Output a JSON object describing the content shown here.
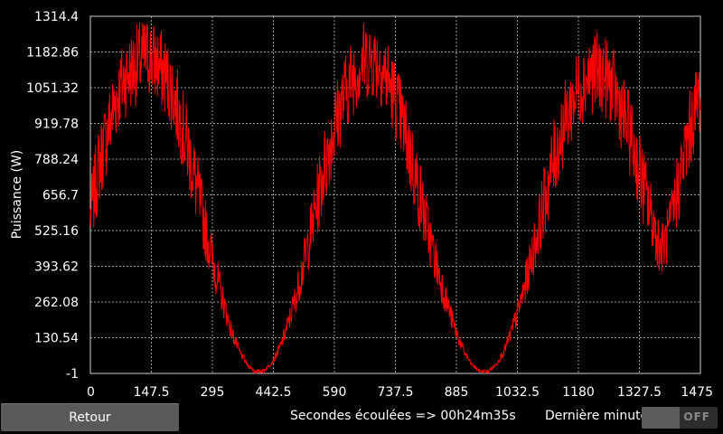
{
  "chart_data": {
    "type": "line",
    "title": "",
    "xlabel": "",
    "ylabel": "Puissance (W)",
    "xlim": [
      0,
      1475
    ],
    "ylim": [
      -1,
      1314.4
    ],
    "x_ticks": [
      "0",
      "147.5",
      "295",
      "442.5",
      "590",
      "737.5",
      "885",
      "1032.5",
      "1180",
      "1327.5",
      "1475"
    ],
    "y_ticks": [
      "-1",
      "130.54",
      "262.08",
      "393.62",
      "525.16",
      "656.7",
      "788.24",
      "919.78",
      "1051.32",
      "1182.86",
      "1314.4"
    ],
    "grid": true,
    "series": [
      {
        "color": "#ff0000",
        "x": [
          0,
          20,
          40,
          60,
          80,
          100,
          120,
          140,
          160,
          180,
          200,
          220,
          240,
          260,
          280,
          300,
          320,
          340,
          360,
          380,
          400,
          420,
          440,
          460,
          480,
          500,
          520,
          540,
          560,
          580,
          600,
          620,
          640,
          660,
          680,
          700,
          720,
          740,
          760,
          780,
          800,
          820,
          840,
          860,
          880,
          900,
          920,
          940,
          960,
          980,
          1000,
          1020,
          1040,
          1060,
          1080,
          1100,
          1120,
          1140,
          1160,
          1180,
          1200,
          1220,
          1240,
          1260,
          1280,
          1300,
          1320,
          1340,
          1360,
          1380,
          1400,
          1420,
          1440,
          1460,
          1475
        ],
        "y": [
          580,
          760,
          880,
          1000,
          1080,
          1120,
          1150,
          1170,
          1140,
          1100,
          1030,
          920,
          800,
          660,
          520,
          390,
          270,
          160,
          80,
          30,
          5,
          10,
          40,
          100,
          190,
          300,
          430,
          570,
          720,
          850,
          960,
          1050,
          1110,
          1150,
          1160,
          1140,
          1080,
          1000,
          890,
          760,
          630,
          500,
          380,
          270,
          170,
          90,
          35,
          8,
          5,
          30,
          80,
          160,
          260,
          380,
          510,
          650,
          780,
          890,
          980,
          1050,
          1090,
          1110,
          1100,
          1060,
          990,
          900,
          790,
          670,
          560,
          450,
          520,
          680,
          830,
          960,
          1040
        ],
        "noise_amplitude": 150
      }
    ]
  },
  "footer": {
    "back_label": "Retour",
    "elapsed_text": "Secondes écoulées => 00h24m35s",
    "last_minute_label": "Dernière minute",
    "toggle_state": "OFF"
  }
}
